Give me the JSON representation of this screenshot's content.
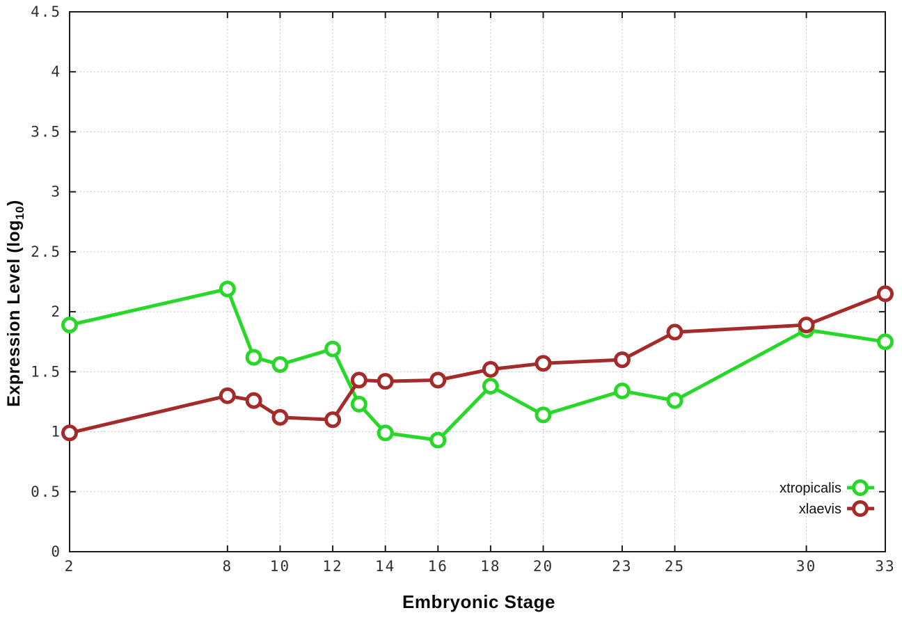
{
  "figure": {
    "ylabel_prefix": "Expression Level (log",
    "ylabel_sub": "10",
    "ylabel_suffix": ")",
    "xlabel": "Embryonic Stage"
  },
  "chart_data": {
    "type": "line",
    "title": "",
    "xlabel": "Embryonic Stage",
    "ylabel": "Expression Level (log10)",
    "x": [
      2,
      8,
      9,
      10,
      12,
      13,
      14,
      16,
      18,
      20,
      23,
      25,
      30,
      33
    ],
    "series": [
      {
        "name": "xtropicalis",
        "color": "#28d828",
        "values": [
          1.89,
          2.19,
          1.62,
          1.56,
          1.69,
          1.23,
          0.99,
          0.93,
          1.38,
          1.14,
          1.34,
          1.26,
          1.85,
          1.75
        ]
      },
      {
        "name": "xlaevis",
        "color": "#a52a2a",
        "values": [
          0.99,
          1.3,
          1.26,
          1.12,
          1.1,
          1.43,
          1.42,
          1.43,
          1.52,
          1.57,
          1.6,
          1.83,
          1.89,
          2.15
        ]
      }
    ],
    "xticks": [
      2,
      8,
      10,
      12,
      14,
      16,
      18,
      20,
      23,
      25,
      30,
      33
    ],
    "yticks": [
      0,
      0.5,
      1,
      1.5,
      2,
      2.5,
      3,
      3.5,
      4,
      4.5
    ],
    "xlim": [
      2,
      33
    ],
    "ylim": [
      0,
      4.5
    ],
    "grid": true,
    "legend_position": "bottom-right",
    "marker": "open-circle",
    "axis_color": "#1c1c1c",
    "grid_color": "#b8b8b8"
  }
}
